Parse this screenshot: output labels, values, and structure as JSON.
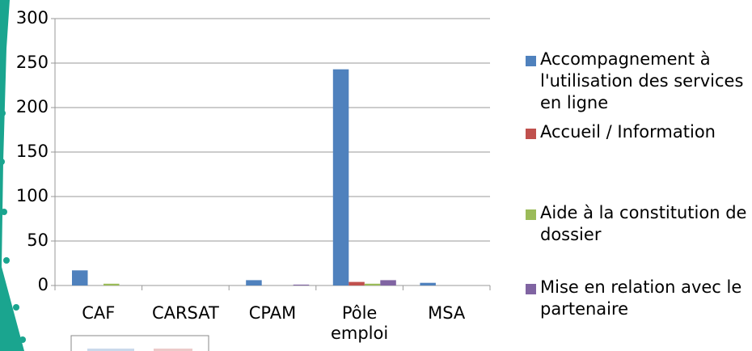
{
  "chart_data": {
    "type": "bar",
    "categories": [
      "CAF",
      "CARSAT",
      "CPAM",
      "Pôle emploi",
      "MSA"
    ],
    "series": [
      {
        "name": "Accompagnement à l'utilisation des services en ligne",
        "color": "#4f81bd",
        "values": [
          17,
          0,
          6,
          243,
          3
        ]
      },
      {
        "name": "Accueil / Information",
        "color": "#c0504d",
        "values": [
          0,
          0,
          0,
          4,
          0
        ]
      },
      {
        "name": "Aide à la constitution de dossier",
        "color": "#9bbb59",
        "values": [
          2,
          0,
          0,
          2,
          0
        ]
      },
      {
        "name": "Mise en relation avec le partenaire",
        "color": "#8064a2",
        "values": [
          0,
          0,
          1,
          6,
          0
        ]
      }
    ],
    "ylim": [
      0,
      300
    ],
    "yticks": [
      0,
      50,
      100,
      150,
      200,
      250,
      300
    ],
    "grid": true,
    "legend": "right"
  }
}
